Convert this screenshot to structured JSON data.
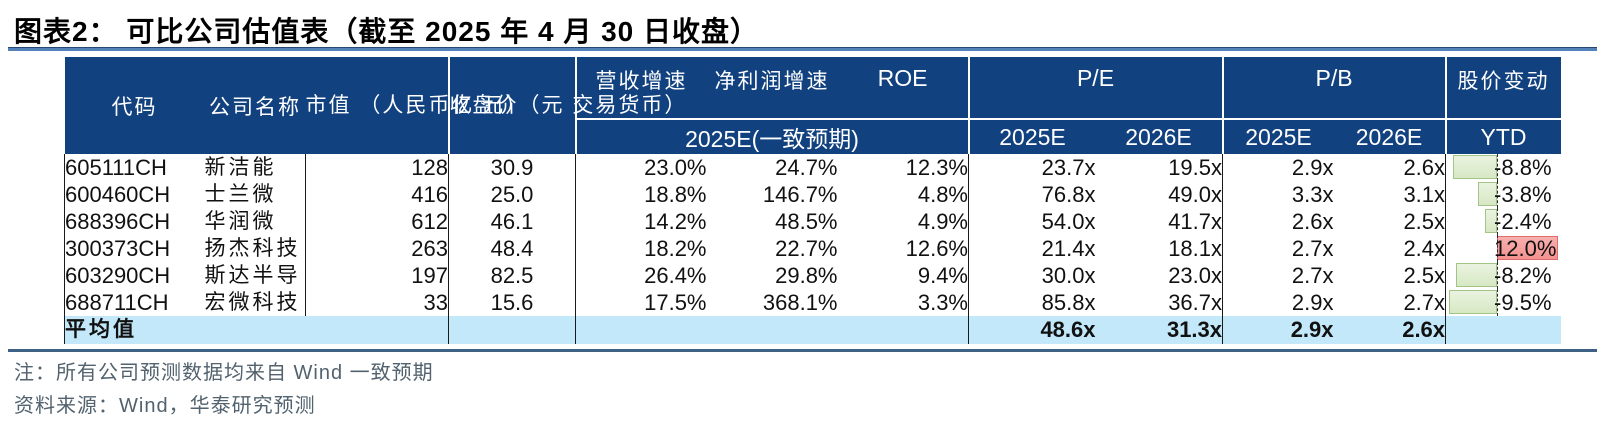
{
  "title": "图表2：  可比公司估值表（截至 2025 年 4 月 30 日收盘）",
  "table": {
    "header": {
      "code": "代码",
      "name": "公司名称",
      "mktcap": "市值\n（人民币亿\n元）",
      "price": "收盘价（元\n交易货币）",
      "rev": "营收增速",
      "profit": "净利润增速",
      "roe": "ROE",
      "growth_sub": "2025E(一致预期)",
      "pe": "P/E",
      "pe_2025": "2025E",
      "pe_2026": "2026E",
      "pb": "P/B",
      "pb_2025": "2025E",
      "pb_2026": "2026E",
      "price_change": "股价变动",
      "ytd": "YTD"
    },
    "rows": [
      {
        "code": "605111CH",
        "name": "新洁能",
        "mktcap": "128",
        "price": "30.9",
        "rev": "23.0%",
        "profit": "24.7%",
        "roe": "12.3%",
        "pe25": "23.7x",
        "pe26": "19.5x",
        "pb25": "2.9x",
        "pb26": "2.6x",
        "ytd": "-8.8%",
        "ytd_value": -8.8
      },
      {
        "code": "600460CH",
        "name": "士兰微",
        "mktcap": "416",
        "price": "25.0",
        "rev": "18.8%",
        "profit": "146.7%",
        "roe": "4.8%",
        "pe25": "76.8x",
        "pe26": "49.0x",
        "pb25": "3.3x",
        "pb26": "3.1x",
        "ytd": "-3.8%",
        "ytd_value": -3.8
      },
      {
        "code": "688396CH",
        "name": "华润微",
        "mktcap": "612",
        "price": "46.1",
        "rev": "14.2%",
        "profit": "48.5%",
        "roe": "4.9%",
        "pe25": "54.0x",
        "pe26": "41.7x",
        "pb25": "2.6x",
        "pb26": "2.5x",
        "ytd": "-2.4%",
        "ytd_value": -2.4
      },
      {
        "code": "300373CH",
        "name": "扬杰科技",
        "mktcap": "263",
        "price": "48.4",
        "rev": "18.2%",
        "profit": "22.7%",
        "roe": "12.6%",
        "pe25": "21.4x",
        "pe26": "18.1x",
        "pb25": "2.7x",
        "pb26": "2.4x",
        "ytd": "12.0%",
        "ytd_value": 12.0
      },
      {
        "code": "603290CH",
        "name": "斯达半导",
        "mktcap": "197",
        "price": "82.5",
        "rev": "26.4%",
        "profit": "29.8%",
        "roe": "9.4%",
        "pe25": "30.0x",
        "pe26": "23.0x",
        "pb25": "2.7x",
        "pb26": "2.5x",
        "ytd": "-8.2%",
        "ytd_value": -8.2
      },
      {
        "code": "688711CH",
        "name": "宏微科技",
        "mktcap": "33",
        "price": "15.6",
        "rev": "17.5%",
        "profit": "368.1%",
        "roe": "3.3%",
        "pe25": "85.8x",
        "pe26": "36.7x",
        "pb25": "2.9x",
        "pb26": "2.7x",
        "ytd": "-9.5%",
        "ytd_value": -9.5
      }
    ],
    "average": {
      "label": "平均值",
      "pe25": "48.6x",
      "pe26": "31.3x",
      "pb25": "2.9x",
      "pb26": "2.6x"
    }
  },
  "notes": [
    "注：所有公司预测数据均来自 Wind 一致预期",
    "资料来源：Wind，华泰研究预测"
  ],
  "colors": {
    "header_bg": "#12417f",
    "header_fg": "#ffffff",
    "avg_bg": "#c3e8f9",
    "green_fill": "#d7e8c4",
    "green_border": "#a3c487",
    "red_fill": "#f39291",
    "red_border": "#e06c6c",
    "title_rule": "#5381b9",
    "title_rule_dark": "#27486e",
    "bottom_rule": "#3e6186",
    "note_fg": "#52626e"
  }
}
